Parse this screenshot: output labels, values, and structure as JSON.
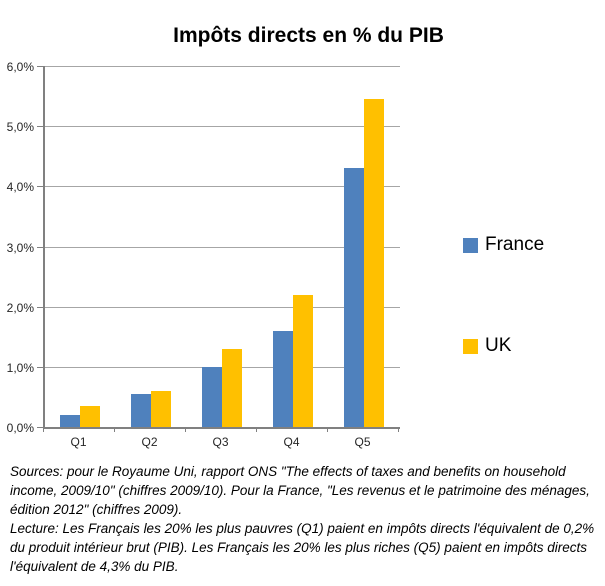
{
  "title": "Impôts directs en % du PIB",
  "chart_data": {
    "type": "bar",
    "title": "Impôts directs en % du PIB",
    "categories": [
      "Q1",
      "Q2",
      "Q3",
      "Q4",
      "Q5"
    ],
    "series": [
      {
        "name": "France",
        "color": "#4F81BD",
        "values": [
          0.2,
          0.55,
          1.0,
          1.6,
          4.3
        ]
      },
      {
        "name": "UK",
        "color": "#FFC000",
        "values": [
          0.35,
          0.6,
          1.3,
          2.2,
          5.45
        ]
      }
    ],
    "xlabel": "",
    "ylabel": "",
    "ylim": [
      0,
      6
    ],
    "yticks": [
      0,
      1,
      2,
      3,
      4,
      5,
      6
    ],
    "ytick_labels": [
      "0,0%",
      "1,0%",
      "2,0%",
      "3,0%",
      "4,0%",
      "5,0%",
      "6,0%"
    ],
    "grid": true,
    "legend_position": "right",
    "unit": "% du PIB"
  },
  "colors": {
    "france": "#4F81BD",
    "uk": "#FFC000",
    "gridline": "#A6A6A6",
    "axis": "#808080",
    "text": "#000000"
  },
  "footer": {
    "sources_lines": [
      "Sources:  pour le Royaume Uni, rapport ONS \"The effects of taxes and benefits on household",
      "income, 2009/10\"  (chiffres 2009/10).  Pour la France, \"Les revenus et le patrimoine des ménages,",
      "édition 2012\" (chiffres 2009)."
    ],
    "lecture_lines": [
      "Lecture:  Les Français les 20% les plus pauvres (Q1) paient en impôts directs l'équivalent de 0,2%",
      "du produit intérieur brut (PIB). Les Français les 20% les plus riches (Q5) paient en impôts directs",
      "l'équivalent de 4,3% du PIB."
    ]
  }
}
